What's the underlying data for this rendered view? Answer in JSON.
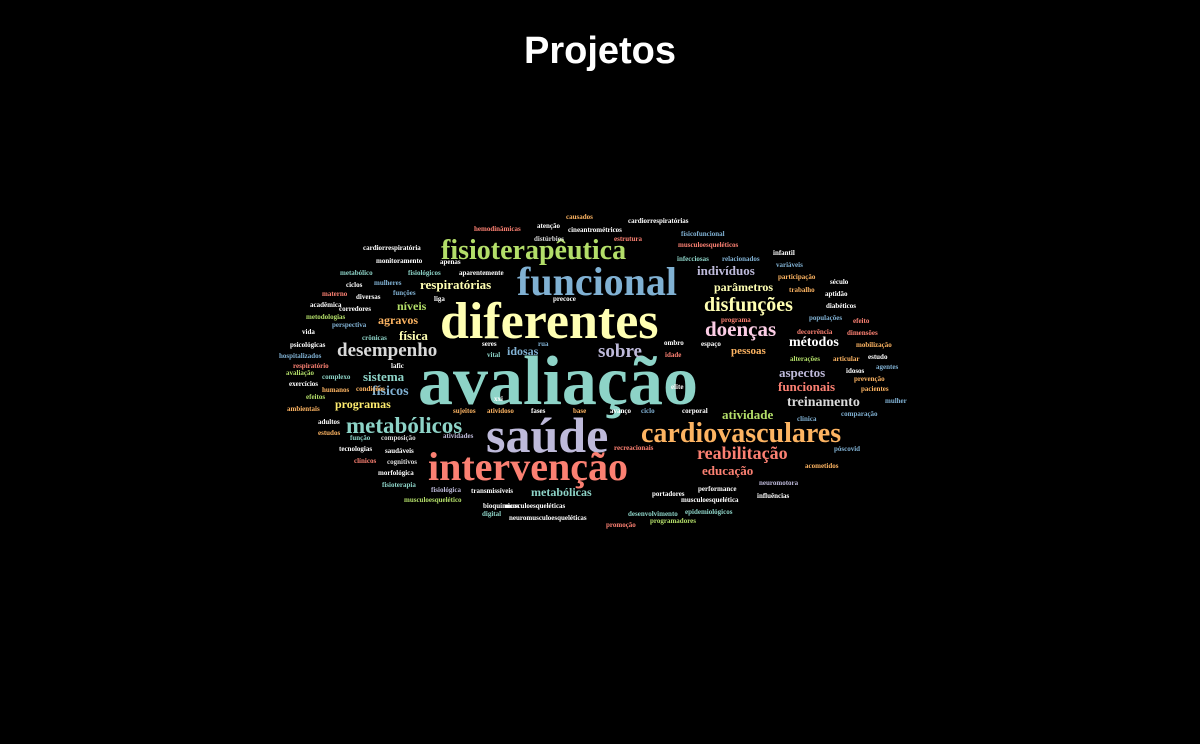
{
  "page": {
    "title": "Projetos"
  },
  "palette": {
    "t": "#8dd3c7",
    "y": "#ffffb3",
    "l": "#bebada",
    "r": "#fb8072",
    "b": "#80b1d3",
    "o": "#fdb462",
    "g": "#b3de69",
    "p": "#fccde5",
    "k": "#d9d9d9",
    "v": "#bc80bd",
    "m": "#ccebc5",
    "f": "#ffed6f",
    "w": "#ffffff"
  },
  "words": [
    {
      "text": "avaliação",
      "color": "t"
    },
    {
      "text": "diferentes",
      "color": "y"
    },
    {
      "text": "saúde",
      "color": "l"
    },
    {
      "text": "intervenção",
      "color": "r"
    },
    {
      "text": "funcional",
      "color": "b"
    },
    {
      "text": "fisioterapêutica",
      "color": "g"
    },
    {
      "text": "cardiovasculares",
      "color": "o"
    },
    {
      "text": "metabólicos",
      "color": "t"
    },
    {
      "text": "disfunções",
      "color": "y"
    },
    {
      "text": "doenças",
      "color": "p"
    },
    {
      "text": "desempenho",
      "color": "k"
    },
    {
      "text": "sobre",
      "color": "l"
    },
    {
      "text": "reabilitação",
      "color": "r"
    },
    {
      "text": "métodos",
      "color": "w"
    },
    {
      "text": "aspectos",
      "color": "l"
    },
    {
      "text": "treinamento",
      "color": "k"
    },
    {
      "text": "funcionais",
      "color": "r"
    },
    {
      "text": "atividade",
      "color": "g"
    },
    {
      "text": "educação",
      "color": "r"
    },
    {
      "text": "metabólicas",
      "color": "t"
    },
    {
      "text": "respiratórias",
      "color": "y"
    },
    {
      "text": "indivíduos",
      "color": "l"
    },
    {
      "text": "parâmetros",
      "color": "y"
    },
    {
      "text": "idosas",
      "color": "b"
    },
    {
      "text": "pessoas",
      "color": "o"
    },
    {
      "text": "agravos",
      "color": "o"
    },
    {
      "text": "níveis",
      "color": "g"
    },
    {
      "text": "física",
      "color": "y"
    },
    {
      "text": "sistema",
      "color": "t"
    },
    {
      "text": "físicos",
      "color": "b"
    },
    {
      "text": "programas",
      "color": "f"
    },
    {
      "text": "cardiorrespiratória",
      "color": "w"
    },
    {
      "text": "monitoramento",
      "color": "w"
    },
    {
      "text": "metabólico",
      "color": "t"
    },
    {
      "text": "ciclos",
      "color": "w"
    },
    {
      "text": "materno",
      "color": "r"
    },
    {
      "text": "acadêmica",
      "color": "w"
    },
    {
      "text": "metodologias",
      "color": "g"
    },
    {
      "text": "vida",
      "color": "w"
    },
    {
      "text": "psicológicas",
      "color": "w"
    },
    {
      "text": "hospitalizados",
      "color": "b"
    },
    {
      "text": "respiratório",
      "color": "r"
    },
    {
      "text": "avaliação",
      "color": "g"
    },
    {
      "text": "exercícios",
      "color": "w"
    },
    {
      "text": "efeitos",
      "color": "g"
    },
    {
      "text": "ambientais",
      "color": "o"
    },
    {
      "text": "adultos",
      "color": "w"
    },
    {
      "text": "estudos",
      "color": "o"
    },
    {
      "text": "tecnologias",
      "color": "w"
    },
    {
      "text": "clínicos",
      "color": "r"
    },
    {
      "text": "morfológica",
      "color": "w"
    },
    {
      "text": "fisioterapia",
      "color": "t"
    },
    {
      "text": "musculoesquelético",
      "color": "g"
    },
    {
      "text": "digital",
      "color": "t"
    },
    {
      "text": "neuromusculoesqueléticas",
      "color": "w"
    },
    {
      "text": "promoção",
      "color": "r"
    },
    {
      "text": "programadores",
      "color": "g"
    },
    {
      "text": "hemodinâmicas",
      "color": "r"
    },
    {
      "text": "atenção",
      "color": "w"
    },
    {
      "text": "causados",
      "color": "o"
    },
    {
      "text": "cardiorrespiratórias",
      "color": "w"
    },
    {
      "text": "cineantrométricos",
      "color": "w"
    },
    {
      "text": "distúrbios",
      "color": "k"
    },
    {
      "text": "estrutura",
      "color": "r"
    },
    {
      "text": "físicofuncional",
      "color": "b"
    },
    {
      "text": "musculoesqueléticos",
      "color": "r"
    },
    {
      "text": "infantil",
      "color": "w"
    },
    {
      "text": "variáveis",
      "color": "b"
    },
    {
      "text": "participação",
      "color": "o"
    },
    {
      "text": "século",
      "color": "w"
    },
    {
      "text": "trabalho",
      "color": "o"
    },
    {
      "text": "aptidão",
      "color": "w"
    },
    {
      "text": "diabéticos",
      "color": "w"
    },
    {
      "text": "efeito",
      "color": "r"
    },
    {
      "text": "dimensões",
      "color": "r"
    },
    {
      "text": "mobilização",
      "color": "o"
    },
    {
      "text": "estudo",
      "color": "w"
    },
    {
      "text": "agentes",
      "color": "b"
    },
    {
      "text": "prevenção",
      "color": "o"
    },
    {
      "text": "pacientes",
      "color": "o"
    },
    {
      "text": "mulher",
      "color": "b"
    },
    {
      "text": "comparação",
      "color": "b"
    },
    {
      "text": "acometidos",
      "color": "o"
    },
    {
      "text": "póscovid",
      "color": "b"
    },
    {
      "text": "fisiológicos",
      "color": "t"
    },
    {
      "text": "mulheres",
      "color": "b"
    },
    {
      "text": "funções",
      "color": "b"
    },
    {
      "text": "diversas",
      "color": "w"
    },
    {
      "text": "corredores",
      "color": "w"
    },
    {
      "text": "perspectiva",
      "color": "b"
    },
    {
      "text": "crônicas",
      "color": "t"
    },
    {
      "text": "complexo",
      "color": "t"
    },
    {
      "text": "humanos",
      "color": "o"
    },
    {
      "text": "condições",
      "color": "o"
    },
    {
      "text": "função",
      "color": "t"
    },
    {
      "text": "composição",
      "color": "k"
    },
    {
      "text": "saudáveis",
      "color": "w"
    },
    {
      "text": "cognitivos",
      "color": "k"
    },
    {
      "text": "fisiológica",
      "color": "l"
    },
    {
      "text": "transmissíveis",
      "color": "w"
    },
    {
      "text": "bioquímicos",
      "color": "w"
    },
    {
      "text": "musculoesqueléticas",
      "color": "w"
    },
    {
      "text": "desenvolvimento",
      "color": "t"
    },
    {
      "text": "apenas",
      "color": "w"
    },
    {
      "text": "aparentemente",
      "color": "w"
    },
    {
      "text": "precoce",
      "color": "w"
    },
    {
      "text": "liga",
      "color": "w"
    },
    {
      "text": "lafic",
      "color": "w"
    },
    {
      "text": "seres",
      "color": "w"
    },
    {
      "text": "rua",
      "color": "b"
    },
    {
      "text": "vital",
      "color": "t"
    },
    {
      "text": "xxi",
      "color": "w"
    },
    {
      "text": "sujeitos",
      "color": "o"
    },
    {
      "text": "atividoso",
      "color": "o"
    },
    {
      "text": "fases",
      "color": "w"
    },
    {
      "text": "atividades",
      "color": "l"
    },
    {
      "text": "base",
      "color": "o"
    },
    {
      "text": "avanço",
      "color": "w"
    },
    {
      "text": "ciclo",
      "color": "b"
    },
    {
      "text": "corporal",
      "color": "w"
    },
    {
      "text": "ombro",
      "color": "w"
    },
    {
      "text": "idade",
      "color": "r"
    },
    {
      "text": "elite",
      "color": "w"
    },
    {
      "text": "espaço",
      "color": "w"
    },
    {
      "text": "programa",
      "color": "r"
    },
    {
      "text": "populações",
      "color": "b"
    },
    {
      "text": "decorrência",
      "color": "r"
    },
    {
      "text": "alterações",
      "color": "g"
    },
    {
      "text": "articular",
      "color": "o"
    },
    {
      "text": "idosos",
      "color": "w"
    },
    {
      "text": "clínica",
      "color": "b"
    },
    {
      "text": "infecciosas",
      "color": "t"
    },
    {
      "text": "relacionados",
      "color": "b"
    },
    {
      "text": "recreacionais",
      "color": "r"
    },
    {
      "text": "performance",
      "color": "w"
    },
    {
      "text": "neuromotora",
      "color": "l"
    },
    {
      "text": "portadores",
      "color": "w"
    },
    {
      "text": "musculoesquelética",
      "color": "w"
    },
    {
      "text": "influências",
      "color": "w"
    },
    {
      "text": "epidemiológicos",
      "color": "t"
    }
  ]
}
